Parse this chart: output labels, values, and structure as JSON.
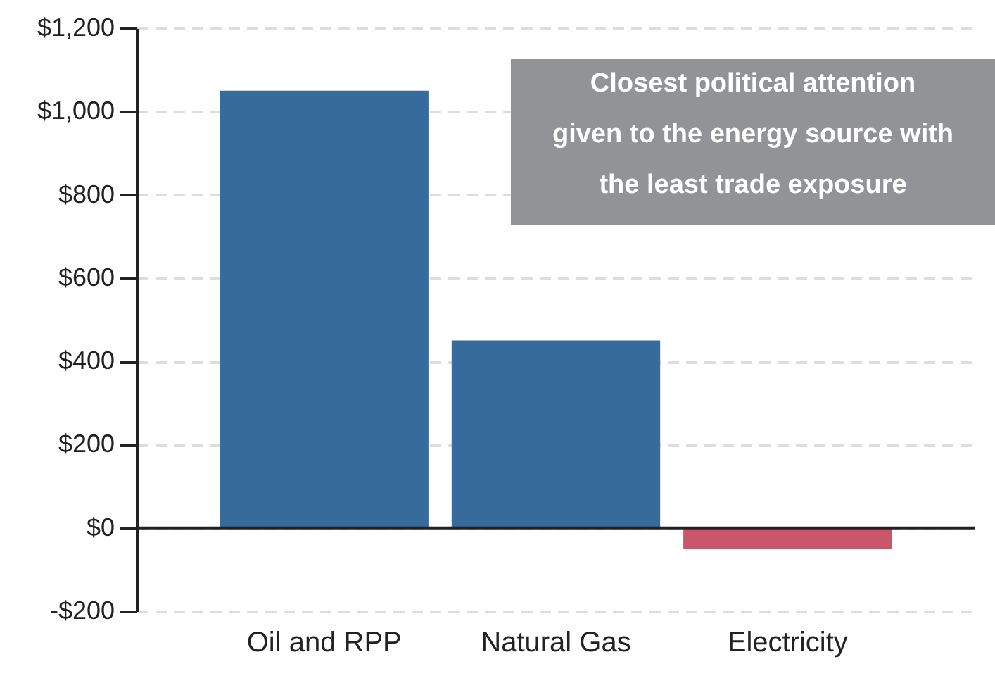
{
  "chart_data": {
    "type": "bar",
    "categories": [
      "Oil and RPP",
      "Natural Gas",
      "Electricity"
    ],
    "values": [
      1050,
      450,
      -50
    ],
    "colors": [
      "#376b9c",
      "#376b9c",
      "#c9566a"
    ],
    "ylim": [
      -200,
      1200
    ],
    "yticks": [
      {
        "value": -200,
        "label": "-$200"
      },
      {
        "value": 0,
        "label": "$0"
      },
      {
        "value": 200,
        "label": "$200"
      },
      {
        "value": 400,
        "label": "$400"
      },
      {
        "value": 600,
        "label": "$600"
      },
      {
        "value": 800,
        "label": "$800"
      },
      {
        "value": 1000,
        "label": "$1,000"
      },
      {
        "value": 1200,
        "label": "$1,200"
      }
    ],
    "grid": "y",
    "ref_lines": [
      {
        "axis": "y",
        "value": 0,
        "color": "#222222"
      }
    ],
    "annotations": [
      "Closest political attention given to the energy source with the least trade exposure"
    ]
  }
}
